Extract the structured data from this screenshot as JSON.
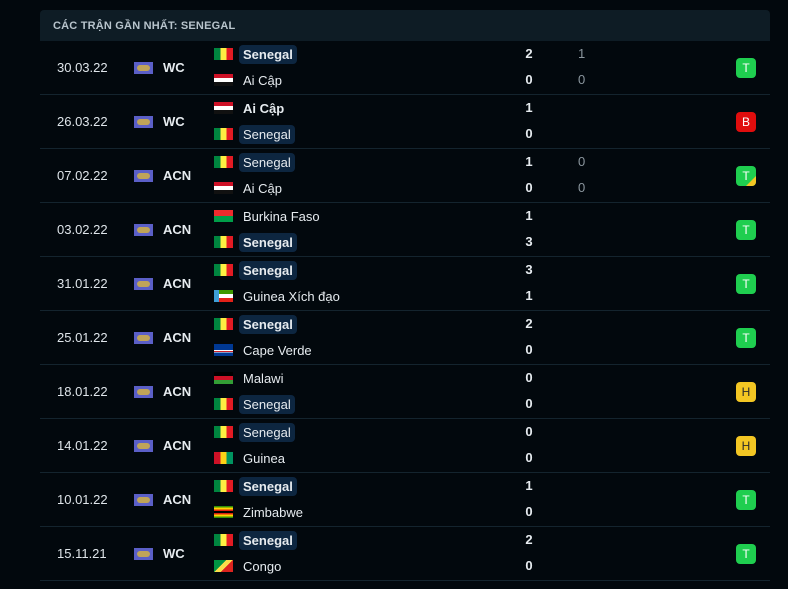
{
  "title": "CÁC TRẬN GẦN NHẤT: SENEGAL",
  "colors": {
    "win": "#1fce4f",
    "loss": "#e00d0d",
    "draw": "#f3c623",
    "highlight": "#0d2640"
  },
  "matches": [
    {
      "date": "30.03.22",
      "league": "WC",
      "home": {
        "name": "Senegal",
        "flag": "SEN",
        "hl": true,
        "bold": true
      },
      "away": {
        "name": "Ai Cập",
        "flag": "EGY",
        "hl": false,
        "bold": false
      },
      "score": [
        "2",
        "0"
      ],
      "pen": [
        "1",
        "0"
      ],
      "result": "T",
      "result_type": "win",
      "pen_mark": false
    },
    {
      "date": "26.03.22",
      "league": "WC",
      "home": {
        "name": "Ai Cập",
        "flag": "EGY",
        "hl": false,
        "bold": true
      },
      "away": {
        "name": "Senegal",
        "flag": "SEN",
        "hl": true,
        "bold": false
      },
      "score": [
        "1",
        "0"
      ],
      "pen": [
        "",
        ""
      ],
      "result": "B",
      "result_type": "loss",
      "pen_mark": false
    },
    {
      "date": "07.02.22",
      "league": "ACN",
      "home": {
        "name": "Senegal",
        "flag": "SEN",
        "hl": true,
        "bold": false
      },
      "away": {
        "name": "Ai Cập",
        "flag": "EGY",
        "hl": false,
        "bold": false
      },
      "score": [
        "1",
        "0"
      ],
      "pen": [
        "0",
        "0"
      ],
      "result": "T",
      "result_type": "win",
      "pen_mark": true
    },
    {
      "date": "03.02.22",
      "league": "ACN",
      "home": {
        "name": "Burkina Faso",
        "flag": "BFA",
        "hl": false,
        "bold": false
      },
      "away": {
        "name": "Senegal",
        "flag": "SEN",
        "hl": true,
        "bold": true
      },
      "score": [
        "1",
        "3"
      ],
      "pen": [
        "",
        ""
      ],
      "result": "T",
      "result_type": "win",
      "pen_mark": false
    },
    {
      "date": "31.01.22",
      "league": "ACN",
      "home": {
        "name": "Senegal",
        "flag": "SEN",
        "hl": true,
        "bold": true
      },
      "away": {
        "name": "Guinea Xích đạo",
        "flag": "GNQ",
        "hl": false,
        "bold": false
      },
      "score": [
        "3",
        "1"
      ],
      "pen": [
        "",
        ""
      ],
      "result": "T",
      "result_type": "win",
      "pen_mark": false
    },
    {
      "date": "25.01.22",
      "league": "ACN",
      "home": {
        "name": "Senegal",
        "flag": "SEN",
        "hl": true,
        "bold": true
      },
      "away": {
        "name": "Cape Verde",
        "flag": "CPV",
        "hl": false,
        "bold": false
      },
      "score": [
        "2",
        "0"
      ],
      "pen": [
        "",
        ""
      ],
      "result": "T",
      "result_type": "win",
      "pen_mark": false
    },
    {
      "date": "18.01.22",
      "league": "ACN",
      "home": {
        "name": "Malawi",
        "flag": "MWI",
        "hl": false,
        "bold": false
      },
      "away": {
        "name": "Senegal",
        "flag": "SEN",
        "hl": true,
        "bold": false
      },
      "score": [
        "0",
        "0"
      ],
      "pen": [
        "",
        ""
      ],
      "result": "H",
      "result_type": "draw",
      "pen_mark": false
    },
    {
      "date": "14.01.22",
      "league": "ACN",
      "home": {
        "name": "Senegal",
        "flag": "SEN",
        "hl": true,
        "bold": false
      },
      "away": {
        "name": "Guinea",
        "flag": "GIN",
        "hl": false,
        "bold": false
      },
      "score": [
        "0",
        "0"
      ],
      "pen": [
        "",
        ""
      ],
      "result": "H",
      "result_type": "draw",
      "pen_mark": false
    },
    {
      "date": "10.01.22",
      "league": "ACN",
      "home": {
        "name": "Senegal",
        "flag": "SEN",
        "hl": true,
        "bold": true
      },
      "away": {
        "name": "Zimbabwe",
        "flag": "ZWE",
        "hl": false,
        "bold": false
      },
      "score": [
        "1",
        "0"
      ],
      "pen": [
        "",
        ""
      ],
      "result": "T",
      "result_type": "win",
      "pen_mark": false
    },
    {
      "date": "15.11.21",
      "league": "WC",
      "home": {
        "name": "Senegal",
        "flag": "SEN",
        "hl": true,
        "bold": true
      },
      "away": {
        "name": "Congo",
        "flag": "COG",
        "hl": false,
        "bold": false
      },
      "score": [
        "2",
        "0"
      ],
      "pen": [
        "",
        ""
      ],
      "result": "T",
      "result_type": "win",
      "pen_mark": false
    }
  ]
}
